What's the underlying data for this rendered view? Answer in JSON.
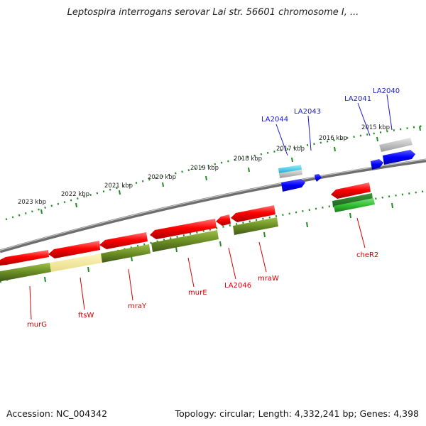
{
  "title": "Leptospira interrogans serovar Lai str. 56601 chromosome I, ...",
  "footer": {
    "accession": "Accession: NC_004342",
    "topology": "Topology: circular; Length: 4,332,241 bp; Genes: 4,398"
  },
  "scale_labels": [
    "2023 kbp",
    "2022 kbp",
    "2021 kbp",
    "2020 kbp",
    "2019 kbp",
    "2018 kbp",
    "2017 kbp",
    "2016 kbp",
    "2015 kbp"
  ],
  "genes_below": [
    "murG",
    "ftsW",
    "mraY",
    "murE",
    "LA2046",
    "mraW",
    "cheR2"
  ],
  "genes_above": [
    "LA2044",
    "LA2043",
    "LA2041",
    "LA2040"
  ],
  "colors": {
    "forward_gene": "#ff0000",
    "reverse_gene": "#6b8e23",
    "highlight_gene": "#f5ec9a",
    "rna_gene": "#3cc83c",
    "blue_gene": "#0000ff",
    "cyan_gene": "#33c9e6",
    "pseudo_gene": "#b3b3b3",
    "backbone": "#7a7a7a",
    "tick": "#228b22",
    "label_red": "#d40000",
    "label_blue": "#1a1acc"
  }
}
